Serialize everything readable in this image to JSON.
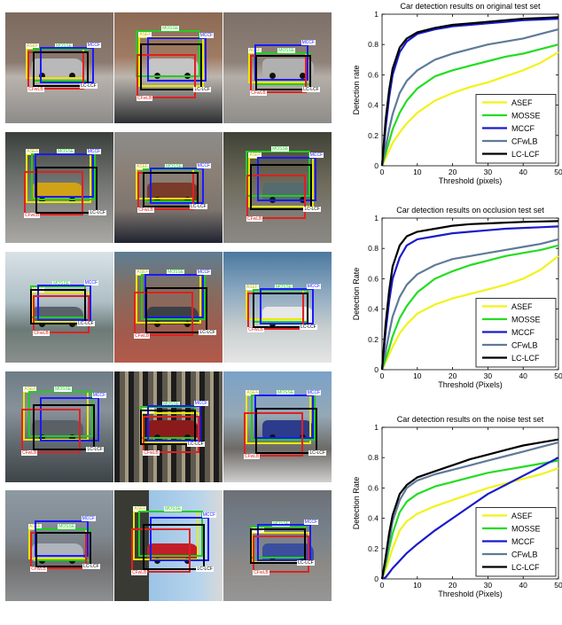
{
  "photo_panel": {
    "colors": {
      "ASEF": "#e8e800",
      "MOSSE": "#22cc22",
      "MCCF": "#1a1aff",
      "CFwLB": "#e02020",
      "LC-LCF": "#000000"
    },
    "tag_texts": {
      "ASEF": "ASEF",
      "MOSSE": "MOSSE",
      "MCCF": "MCCF",
      "CFwLB": "CFwLB",
      "LC-LCF": "LC-LCF"
    }
  },
  "chart_data": [
    {
      "type": "line",
      "title": "Car detection results on original test set",
      "xlabel": "Threshold (pixels)",
      "ylabel": "Detection rate",
      "xlim": [
        0,
        50
      ],
      "ylim": [
        0,
        1
      ],
      "xticks": [
        0,
        10,
        20,
        30,
        40,
        50
      ],
      "yticks": [
        0,
        0.2,
        0.4,
        0.6,
        0.8,
        1
      ],
      "legend_position": "bottom-right",
      "x": [
        0,
        1,
        2,
        3,
        5,
        7,
        10,
        15,
        20,
        25,
        30,
        35,
        40,
        45,
        50
      ],
      "series": [
        {
          "name": "ASEF",
          "color": "#f2f21a",
          "values": [
            0,
            0.05,
            0.1,
            0.15,
            0.22,
            0.28,
            0.35,
            0.43,
            0.48,
            0.52,
            0.55,
            0.59,
            0.63,
            0.68,
            0.75
          ]
        },
        {
          "name": "MOSSE",
          "color": "#22dd22",
          "values": [
            0,
            0.08,
            0.16,
            0.24,
            0.35,
            0.43,
            0.51,
            0.59,
            0.63,
            0.66,
            0.69,
            0.72,
            0.74,
            0.77,
            0.8
          ]
        },
        {
          "name": "MCCF",
          "color": "#1a1acc",
          "values": [
            0,
            0.25,
            0.45,
            0.6,
            0.75,
            0.82,
            0.87,
            0.9,
            0.92,
            0.93,
            0.94,
            0.95,
            0.96,
            0.965,
            0.97
          ]
        },
        {
          "name": "CFwLB",
          "color": "#5f7a99",
          "values": [
            0,
            0.12,
            0.24,
            0.34,
            0.48,
            0.56,
            0.63,
            0.7,
            0.74,
            0.77,
            0.8,
            0.82,
            0.84,
            0.87,
            0.9
          ]
        },
        {
          "name": "LC-LCF",
          "color": "#000000",
          "values": [
            0,
            0.3,
            0.5,
            0.64,
            0.78,
            0.84,
            0.88,
            0.91,
            0.93,
            0.94,
            0.95,
            0.96,
            0.97,
            0.975,
            0.98
          ]
        }
      ]
    },
    {
      "type": "line",
      "title": "Car detection results on occlusion test set",
      "xlabel": "Threshold (Pixels)",
      "ylabel": "Detection Rate",
      "xlim": [
        0,
        50
      ],
      "ylim": [
        0,
        1
      ],
      "xticks": [
        0,
        10,
        20,
        30,
        40,
        50
      ],
      "yticks": [
        0,
        0.2,
        0.4,
        0.6,
        0.8,
        1
      ],
      "legend_position": "bottom-right",
      "x": [
        0,
        1,
        2,
        3,
        5,
        7,
        10,
        15,
        20,
        25,
        30,
        35,
        40,
        45,
        50
      ],
      "series": [
        {
          "name": "ASEF",
          "color": "#f2f21a",
          "values": [
            0,
            0.05,
            0.1,
            0.15,
            0.24,
            0.3,
            0.37,
            0.43,
            0.47,
            0.5,
            0.53,
            0.56,
            0.6,
            0.66,
            0.75
          ]
        },
        {
          "name": "MOSSE",
          "color": "#22dd22",
          "values": [
            0,
            0.07,
            0.14,
            0.22,
            0.34,
            0.42,
            0.51,
            0.6,
            0.65,
            0.69,
            0.72,
            0.75,
            0.77,
            0.79,
            0.82
          ]
        },
        {
          "name": "MCCF",
          "color": "#1a1acc",
          "values": [
            0,
            0.25,
            0.45,
            0.6,
            0.74,
            0.82,
            0.86,
            0.88,
            0.9,
            0.91,
            0.92,
            0.93,
            0.935,
            0.94,
            0.945
          ]
        },
        {
          "name": "CFwLB",
          "color": "#5f7a99",
          "values": [
            0,
            0.12,
            0.24,
            0.35,
            0.48,
            0.56,
            0.63,
            0.69,
            0.73,
            0.75,
            0.77,
            0.79,
            0.81,
            0.83,
            0.86
          ]
        },
        {
          "name": "LC-LCF",
          "color": "#000000",
          "values": [
            0,
            0.3,
            0.52,
            0.68,
            0.82,
            0.88,
            0.91,
            0.93,
            0.95,
            0.96,
            0.965,
            0.97,
            0.975,
            0.978,
            0.98
          ]
        }
      ]
    },
    {
      "type": "line",
      "title": "Car detection results on the noise test set",
      "xlabel": "Threshold (Pixels)",
      "ylabel": "Detection Rate",
      "xlim": [
        0,
        50
      ],
      "ylim": [
        0,
        1
      ],
      "xticks": [
        0,
        10,
        20,
        30,
        40,
        50
      ],
      "yticks": [
        0,
        0.2,
        0.4,
        0.6,
        0.8,
        1
      ],
      "legend_position": "bottom-right",
      "x": [
        0,
        1,
        2,
        3,
        5,
        7,
        10,
        15,
        20,
        25,
        30,
        35,
        40,
        45,
        50
      ],
      "series": [
        {
          "name": "ASEF",
          "color": "#f2f21a",
          "values": [
            0,
            0.06,
            0.13,
            0.2,
            0.32,
            0.38,
            0.43,
            0.48,
            0.52,
            0.56,
            0.6,
            0.63,
            0.66,
            0.69,
            0.73
          ]
        },
        {
          "name": "MOSSE",
          "color": "#22dd22",
          "values": [
            0,
            0.09,
            0.2,
            0.3,
            0.44,
            0.51,
            0.56,
            0.61,
            0.64,
            0.67,
            0.7,
            0.72,
            0.74,
            0.76,
            0.78
          ]
        },
        {
          "name": "MCCF",
          "color": "#1a1acc",
          "values": [
            0,
            0.01,
            0.04,
            0.07,
            0.12,
            0.17,
            0.23,
            0.32,
            0.4,
            0.48,
            0.56,
            0.62,
            0.68,
            0.74,
            0.8
          ]
        },
        {
          "name": "CFwLB",
          "color": "#5f7a99",
          "values": [
            0,
            0.11,
            0.25,
            0.38,
            0.52,
            0.6,
            0.65,
            0.69,
            0.72,
            0.75,
            0.78,
            0.81,
            0.84,
            0.87,
            0.9
          ]
        },
        {
          "name": "LC-LCF",
          "color": "#000000",
          "values": [
            0,
            0.14,
            0.3,
            0.42,
            0.56,
            0.62,
            0.67,
            0.71,
            0.75,
            0.79,
            0.82,
            0.85,
            0.88,
            0.9,
            0.92
          ]
        }
      ]
    }
  ]
}
